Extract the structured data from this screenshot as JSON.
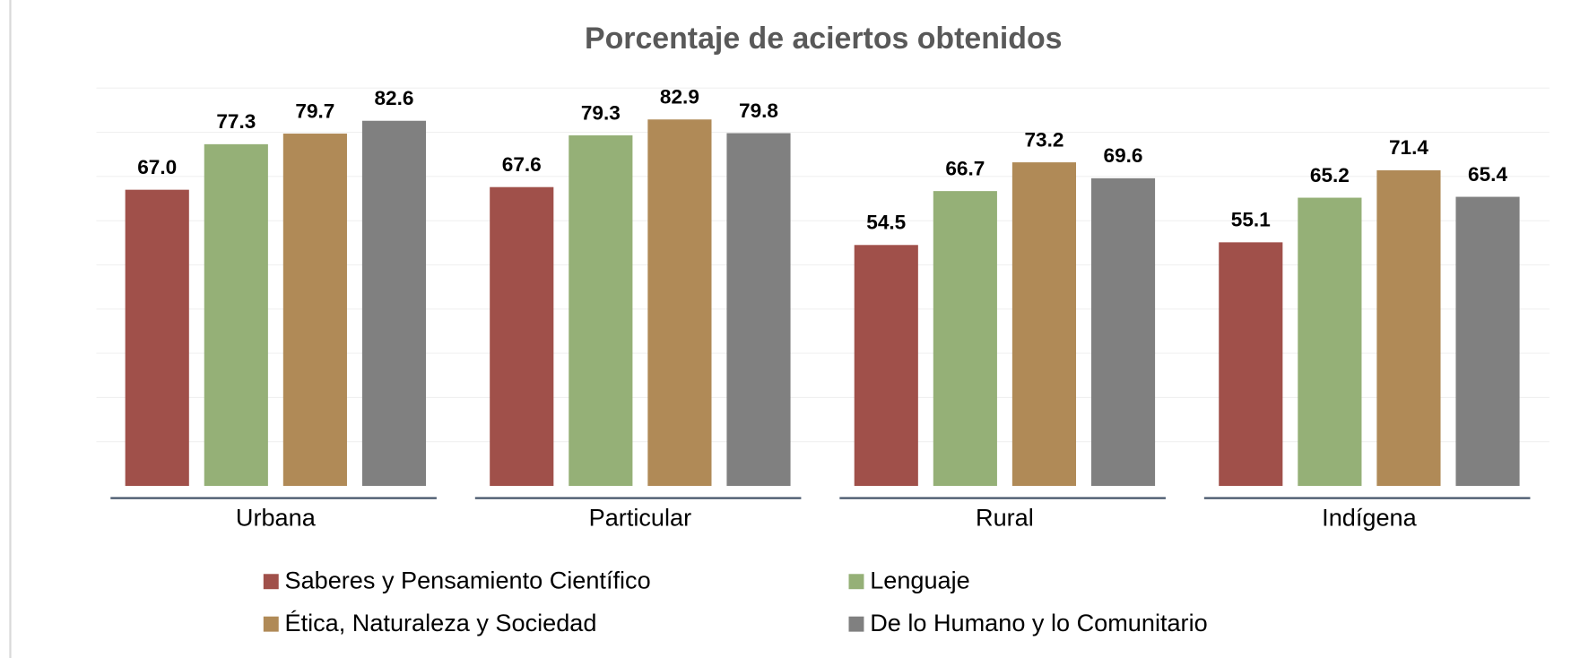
{
  "chart_data": {
    "type": "bar",
    "title": "Porcentaje de aciertos obtenidos",
    "categories": [
      "Urbana",
      "Particular",
      "Rural",
      "Indígena"
    ],
    "series": [
      {
        "name": "Saberes y Pensamiento Científico",
        "color": "#a0504a",
        "values": [
          67.0,
          67.6,
          54.5,
          55.1
        ],
        "value_labels": [
          "67.0",
          "67.6",
          "54.5",
          "55.1"
        ]
      },
      {
        "name": "Lenguaje",
        "color": "#95b077",
        "values": [
          77.3,
          79.3,
          66.7,
          65.2
        ],
        "value_labels": [
          "77.3",
          "79.3",
          "66.7",
          "65.2"
        ]
      },
      {
        "name": "Ética, Naturaleza y Sociedad",
        "color": "#b08a57",
        "values": [
          79.7,
          82.9,
          73.2,
          71.4
        ],
        "value_labels": [
          "79.7",
          "82.9",
          "73.2",
          "71.4"
        ]
      },
      {
        "name": "De lo Humano y lo Comunitario",
        "color": "#808080",
        "values": [
          82.6,
          79.8,
          69.6,
          65.4
        ],
        "value_labels": [
          "82.6",
          "79.8",
          "69.6",
          "65.4"
        ]
      }
    ],
    "ylim": [
      0,
      90
    ],
    "yticks": [
      10,
      20,
      30,
      40,
      50,
      60,
      70,
      80,
      90
    ],
    "grid": true
  }
}
